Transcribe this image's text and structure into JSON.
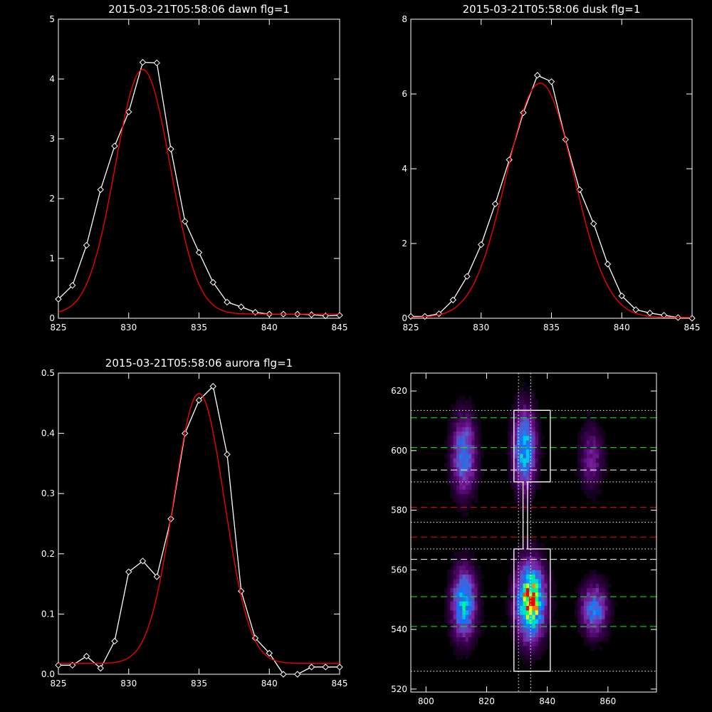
{
  "chart_data": [
    {
      "type": "line",
      "title": "2015-03-21T05:58:06 dawn flg=1",
      "xlim": [
        825,
        845
      ],
      "ylim": [
        0,
        5
      ],
      "xticks": [
        825,
        830,
        835,
        840,
        845
      ],
      "yticks": [
        0,
        1,
        2,
        3,
        4,
        5
      ],
      "grid": false,
      "series": [
        {
          "color": "#ffffff",
          "marker": "diamond",
          "x": [
            825,
            826,
            827,
            828,
            829,
            830,
            831,
            832,
            833,
            834,
            835,
            836,
            837,
            838,
            839,
            840,
            841,
            842,
            843,
            844,
            845
          ],
          "y": [
            0.32,
            0.55,
            1.22,
            2.15,
            2.88,
            3.45,
            4.28,
            4.27,
            2.83,
            1.62,
            1.1,
            0.6,
            0.27,
            0.19,
            0.1,
            0.07,
            0.07,
            0.07,
            0.06,
            0.04,
            0.05
          ]
        },
        {
          "color": "#ff0000",
          "curve": "gaussian",
          "center": 831.0,
          "sigma": 1.95,
          "amplitude": 4.09,
          "offset": 0.07
        }
      ]
    },
    {
      "type": "line",
      "title": "2015-03-21T05:58:06 dusk flg=1",
      "xlim": [
        825,
        845
      ],
      "ylim": [
        0,
        8
      ],
      "xticks": [
        825,
        830,
        835,
        840,
        845
      ],
      "yticks": [
        0,
        2,
        4,
        6,
        8
      ],
      "grid": false,
      "series": [
        {
          "color": "#ffffff",
          "marker": "diamond",
          "x": [
            825,
            826,
            827,
            828,
            829,
            830,
            831,
            832,
            833,
            834,
            835,
            836,
            837,
            838,
            839,
            840,
            841,
            842,
            843,
            844,
            845
          ],
          "y": [
            0.05,
            0.05,
            0.12,
            0.49,
            1.12,
            1.97,
            3.06,
            4.24,
            5.5,
            6.5,
            6.33,
            4.78,
            3.44,
            2.53,
            1.45,
            0.6,
            0.23,
            0.14,
            0.08,
            0.02,
            0.0
          ]
        },
        {
          "color": "#ff0000",
          "curve": "gaussian",
          "center": 834.2,
          "sigma": 2.4,
          "amplitude": 6.27,
          "offset": 0.02
        }
      ]
    },
    {
      "type": "line",
      "title": "2015-03-21T05:58:06 aurora flg=1",
      "xlim": [
        825,
        845
      ],
      "ylim": [
        0,
        0.5
      ],
      "xticks": [
        825,
        830,
        835,
        840,
        845
      ],
      "yticks": [
        0,
        0.1,
        0.2,
        0.3,
        0.4,
        0.5
      ],
      "ytick_labels": [
        "0.0",
        "0.1",
        "0.2",
        "0.3",
        "0.4",
        "0.5"
      ],
      "grid": false,
      "series": [
        {
          "color": "#ffffff",
          "marker": "diamond",
          "x": [
            825,
            826,
            827,
            828,
            829,
            830,
            831,
            832,
            833,
            834,
            835,
            836,
            837,
            838,
            839,
            840,
            841,
            842,
            843,
            844,
            845
          ],
          "y": [
            0.015,
            0.015,
            0.03,
            0.01,
            0.055,
            0.17,
            0.188,
            0.162,
            0.258,
            0.4,
            0.455,
            0.478,
            0.365,
            0.138,
            0.06,
            0.035,
            0.0,
            0.0,
            0.012,
            0.012,
            0.012
          ]
        },
        {
          "color": "#ff0000",
          "curve": "gaussian",
          "center": 835.0,
          "sigma": 1.8,
          "amplitude": 0.448,
          "offset": 0.018
        }
      ]
    },
    {
      "type": "heatmap",
      "xlim": [
        795,
        876
      ],
      "ylim": [
        519,
        626
      ],
      "xticks": [
        800,
        820,
        840,
        860
      ],
      "yticks": [
        520,
        540,
        560,
        580,
        600,
        620
      ],
      "colormap": [
        "#000000",
        "#3a0050",
        "#7a20a0",
        "#5060d0",
        "#1070ff",
        "#00c0ff",
        "#00ff80",
        "#ffff00",
        "#ff0000"
      ],
      "blobs": [
        {
          "x": 812,
          "y": 598,
          "sx": 2.6,
          "sy": 8.5,
          "amp": 0.45
        },
        {
          "x": 832,
          "y": 600,
          "sx": 2.4,
          "sy": 8.5,
          "amp": 0.62
        },
        {
          "x": 854,
          "y": 597,
          "sx": 2.6,
          "sy": 7.0,
          "amp": 0.22
        },
        {
          "x": 812,
          "y": 548,
          "sx": 2.6,
          "sy": 7.5,
          "amp": 0.6
        },
        {
          "x": 834,
          "y": 549,
          "sx": 3.0,
          "sy": 8.0,
          "amp": 1.0
        },
        {
          "x": 855,
          "y": 546,
          "sx": 2.8,
          "sy": 5.5,
          "amp": 0.45
        }
      ],
      "hlines": [
        {
          "y": 613.5,
          "color": "#ffffff",
          "style": "dotted"
        },
        {
          "y": 611,
          "color": "#00ff00",
          "style": "dashed"
        },
        {
          "y": 601,
          "color": "#00ff00",
          "style": "dashed"
        },
        {
          "y": 593.5,
          "color": "#ffffff",
          "style": "dashed"
        },
        {
          "y": 589.5,
          "color": "#ffffff",
          "style": "dotted"
        },
        {
          "y": 581,
          "color": "#ff0000",
          "style": "dashed"
        },
        {
          "y": 576,
          "color": "#ffffff",
          "style": "dotted"
        },
        {
          "y": 571,
          "color": "#ff0000",
          "style": "dashed"
        },
        {
          "y": 567,
          "color": "#ffffff",
          "style": "dotted"
        },
        {
          "y": 563.5,
          "color": "#ffffff",
          "style": "dashed"
        },
        {
          "y": 551,
          "color": "#00ff00",
          "style": "dashed"
        },
        {
          "y": 541,
          "color": "#00ff00",
          "style": "dashed"
        },
        {
          "y": 526,
          "color": "#ffffff",
          "style": "dotted"
        }
      ],
      "vlines": [
        {
          "x": 830.5,
          "color": "#ffffff",
          "style": "dotted"
        },
        {
          "x": 834.5,
          "color": "#ffffff",
          "style": "dotted"
        }
      ],
      "outline": [
        [
          829,
          613.5
        ],
        [
          841,
          613.5
        ],
        [
          841,
          589.5
        ],
        [
          833.5,
          589.5
        ],
        [
          833.5,
          567
        ],
        [
          841,
          567
        ],
        [
          841,
          526
        ],
        [
          829,
          526
        ],
        [
          829,
          567
        ],
        [
          832,
          567
        ],
        [
          832,
          589.5
        ],
        [
          829,
          589.5
        ]
      ]
    }
  ]
}
